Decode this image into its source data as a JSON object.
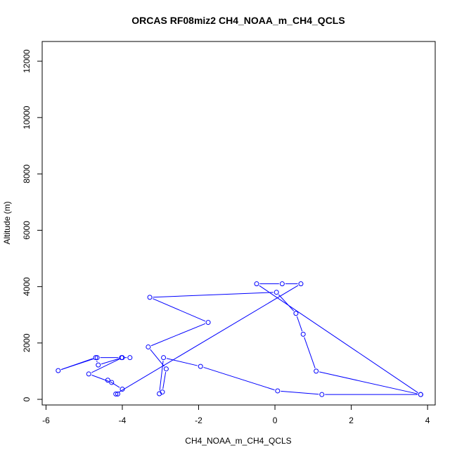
{
  "chart_data": {
    "type": "line",
    "title": "ORCAS RF08miz2 CH4_NOAA_m_CH4_QCLS",
    "xlabel": "CH4_NOAA_m_CH4_QCLS",
    "ylabel": "Altitude (m)",
    "xlim": [
      -6.1,
      4.2
    ],
    "ylim": [
      -200,
      12700
    ],
    "xticks": [
      "-6",
      "-4",
      "-2",
      "0",
      "2",
      "4"
    ],
    "yticks": [
      "0",
      "2000",
      "4000",
      "6000",
      "8000",
      "10000",
      "12000"
    ],
    "xtick_values": [
      -6,
      -4,
      -2,
      0,
      2,
      4
    ],
    "ytick_values": [
      0,
      2000,
      4000,
      6000,
      8000,
      10000,
      12000
    ],
    "series_color": "#0000ff",
    "x": [
      3.82,
      1.23,
      0.07,
      -1.95,
      -2.92,
      -3.03,
      -2.95,
      -2.85,
      -3.32,
      -1.75,
      -3.28,
      0.04,
      0.55,
      0.74,
      1.08,
      3.82,
      -0.48,
      0.19,
      0.68,
      -4.17,
      -4.12,
      -4.0,
      -4.38,
      -4.28,
      -4.88,
      -4.0,
      -4.63,
      -4.7,
      -5.68,
      -4.66,
      -4.02,
      -3.8
    ],
    "y": [
      170,
      170,
      300,
      1170,
      1480,
      200,
      260,
      1080,
      1860,
      2730,
      3620,
      3800,
      3050,
      2310,
      1000,
      170,
      4100,
      4100,
      4100,
      190,
      190,
      360,
      680,
      600,
      900,
      1480,
      1220,
      1480,
      1020,
      1480,
      1480,
      1480
    ]
  }
}
